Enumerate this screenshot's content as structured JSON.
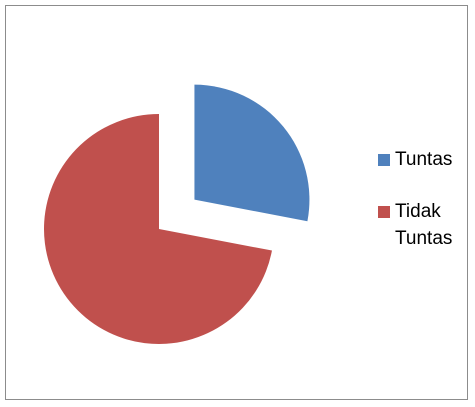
{
  "chart_data": {
    "type": "pie",
    "title": "",
    "categories": [
      "Tuntas",
      "Tidak Tuntas"
    ],
    "values": [
      28,
      72
    ],
    "colors": [
      "#4f81bd",
      "#c0504d"
    ],
    "exploded": [
      true,
      false
    ],
    "start_angle_deg": 0,
    "direction": "clockwise",
    "legend": {
      "placement": "right"
    }
  }
}
